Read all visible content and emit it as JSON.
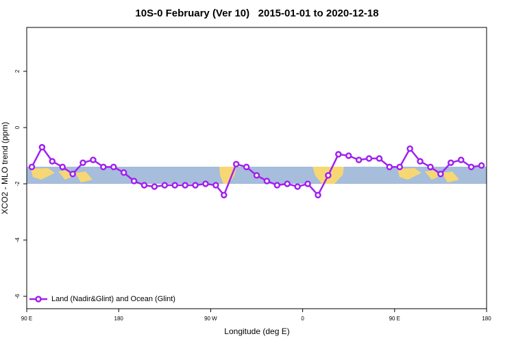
{
  "chart_data": {
    "type": "line",
    "title": "10S-0 February (Ver 10)   2015-01-01 to 2020-12-18",
    "xlabel": "Longitude (deg E)",
    "ylabel": "XCO2 - MLO trend (ppm)",
    "x": [
      95,
      105,
      115,
      125,
      135,
      145,
      155,
      165,
      175,
      185,
      195,
      205,
      215,
      225,
      235,
      245,
      255,
      265,
      275,
      283,
      295,
      305,
      315,
      325,
      335,
      345,
      355,
      365,
      375,
      385,
      395,
      405,
      415,
      425,
      435,
      445,
      455,
      465,
      475,
      485,
      495,
      505,
      515,
      525,
      535
    ],
    "series": [
      {
        "name": "Land (Nadir&Glint) and Ocean (Glint)",
        "color": "#a020f0",
        "values": [
          -1.4,
          -0.7,
          -1.2,
          -1.4,
          -1.65,
          -1.25,
          -1.15,
          -1.4,
          -1.4,
          -1.6,
          -1.9,
          -2.05,
          -2.1,
          -2.05,
          -2.05,
          -2.05,
          -2.05,
          -2.0,
          -2.05,
          -2.4,
          -1.3,
          -1.4,
          -1.7,
          -1.9,
          -2.05,
          -2.0,
          -2.1,
          -2.0,
          -2.4,
          -1.7,
          -0.95,
          -1.0,
          -1.15,
          -1.1,
          -1.1,
          -1.4,
          -1.4,
          -0.75,
          -1.2,
          -1.4,
          -1.65,
          -1.25,
          -1.15,
          -1.4,
          -1.35
        ]
      }
    ],
    "xlim": [
      90,
      540
    ],
    "ylim": [
      -6.44,
      3.56
    ],
    "xticks": [
      {
        "value": 90,
        "label": "90 E"
      },
      180,
      {
        "value": 270,
        "label": "90 W"
      },
      {
        "value": 360,
        "label": "0"
      },
      {
        "value": 450,
        "label": "90 E"
      },
      {
        "value": 540,
        "label": "180"
      }
    ],
    "yticks": [
      -6,
      -4,
      -2,
      0,
      2
    ],
    "legend": "bottom-left"
  }
}
